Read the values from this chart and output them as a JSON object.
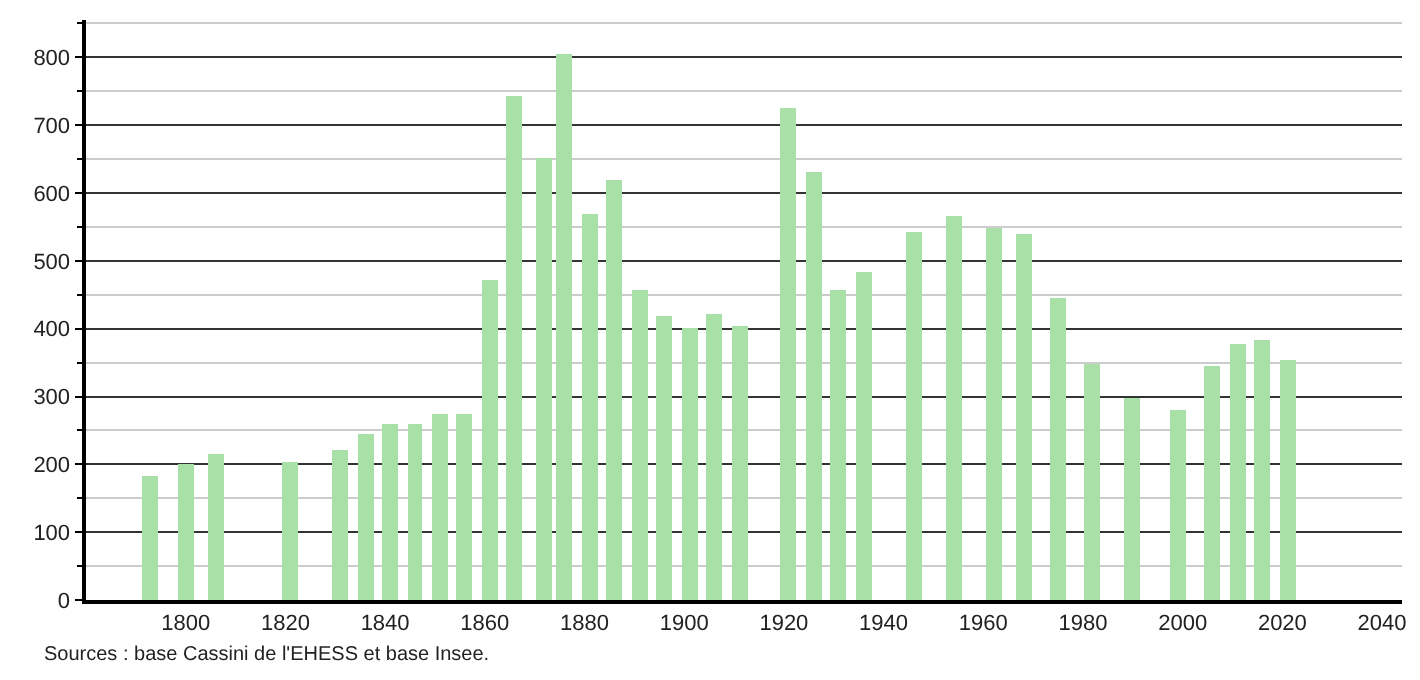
{
  "chart_data": {
    "type": "bar",
    "x": [
      1793,
      1800,
      1806,
      1821,
      1831,
      1836,
      1841,
      1846,
      1851,
      1856,
      1861,
      1866,
      1872,
      1876,
      1881,
      1886,
      1891,
      1896,
      1901,
      1906,
      1911,
      1921,
      1926,
      1931,
      1936,
      1946,
      1954,
      1962,
      1968,
      1975,
      1982,
      1990,
      1999,
      2006,
      2011,
      2016,
      2021
    ],
    "values": [
      183,
      200,
      214,
      202,
      221,
      244,
      259,
      260,
      273,
      274,
      471,
      744,
      653,
      804,
      568,
      618,
      456,
      418,
      400,
      421,
      405,
      726,
      630,
      456,
      485,
      542,
      566,
      549,
      539,
      445,
      348,
      299,
      280,
      345,
      377,
      383,
      353
    ],
    "color": "#a8e0a8",
    "xlim": [
      1780,
      2044
    ],
    "xticks": [
      1800,
      1820,
      1840,
      1860,
      1880,
      1900,
      1920,
      1940,
      1960,
      1980,
      2000,
      2020,
      2040
    ],
    "ylim": [
      0,
      855
    ],
    "yticks": [
      0,
      100,
      200,
      300,
      400,
      500,
      600,
      700,
      800
    ],
    "grid": "y",
    "annotations": [
      "Sources : base Cassini de l'EHESS et base Insee."
    ]
  }
}
